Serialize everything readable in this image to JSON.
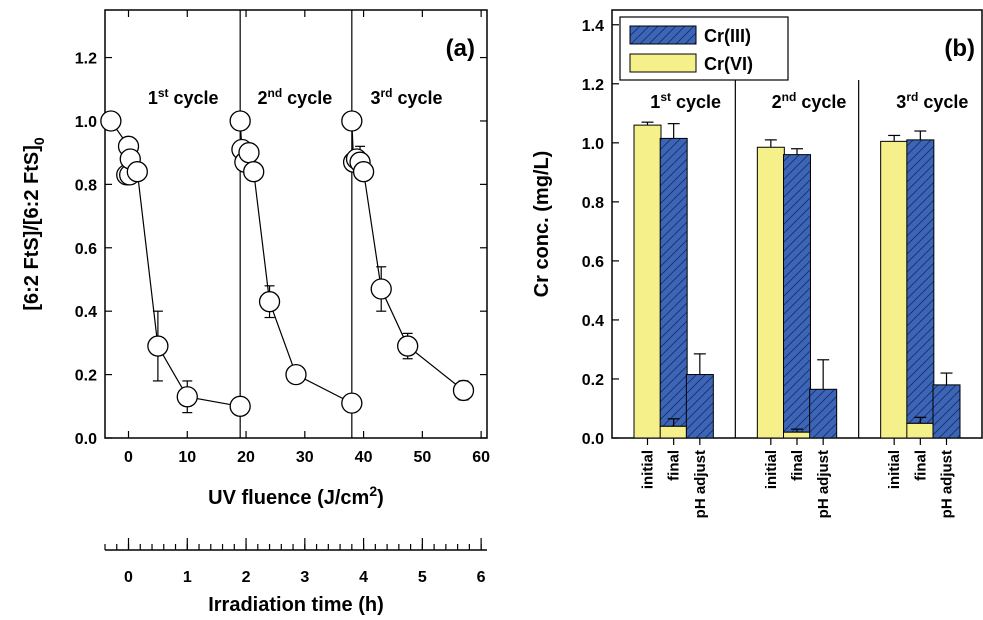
{
  "chart_data": [
    {
      "type": "line",
      "panel_label": "(a)",
      "xlabel": "UV fluence (J/cm",
      "xlabel_sup": "2",
      "xlabel_close": ")",
      "ylabel": "[6:2 FtS]/[6:2 FtS]",
      "ylabel_sub": "0",
      "xlim": [
        -4,
        61
      ],
      "ylim": [
        0,
        1.35
      ],
      "x_ticks": [
        0,
        10,
        20,
        30,
        40,
        50,
        60
      ],
      "y_ticks": [
        0.0,
        0.2,
        0.4,
        0.6,
        0.8,
        1.0,
        1.2
      ],
      "x_tick_labels": [
        "0",
        "10",
        "20",
        "30",
        "40",
        "50",
        "60"
      ],
      "y_tick_labels": [
        "0.0",
        "0.2",
        "0.4",
        "0.6",
        "0.8",
        "1.0",
        "1.2"
      ],
      "cycle_dividers_x": [
        19,
        38
      ],
      "cycle_labels": [
        {
          "num": "1",
          "sup": "st",
          "text": " cycle",
          "x": 2.5
        },
        {
          "num": "2",
          "sup": "nd",
          "text": " cycle",
          "x": 21.5
        },
        {
          "num": "3",
          "sup": "rd",
          "text": " cycle",
          "x": 40.5
        }
      ],
      "series": [
        {
          "points": [
            [
              -3,
              1.0,
              0
            ],
            [
              0,
              0.92,
              0
            ],
            [
              -0.3,
              0.83,
              0
            ],
            [
              0.2,
              0.83,
              0
            ],
            [
              0.3,
              0.88,
              0.03
            ],
            [
              1.5,
              0.84,
              0
            ],
            [
              5,
              0.29,
              0.11
            ],
            [
              10,
              0.13,
              0.05
            ],
            [
              19,
              0.1,
              0
            ]
          ]
        },
        {
          "points": [
            [
              19,
              1.0,
              0
            ],
            [
              19.3,
              0.91,
              0
            ],
            [
              19.8,
              0.87,
              0
            ],
            [
              20.5,
              0.9,
              0
            ],
            [
              21.3,
              0.84,
              0
            ],
            [
              24,
              0.43,
              0.05
            ],
            [
              28.5,
              0.2,
              0
            ],
            [
              38,
              0.11,
              0
            ]
          ]
        },
        {
          "points": [
            [
              38,
              1.0,
              0
            ],
            [
              38.3,
              0.87,
              0
            ],
            [
              38.8,
              0.88,
              0
            ],
            [
              39.4,
              0.87,
              0.05
            ],
            [
              40,
              0.84,
              0
            ],
            [
              43,
              0.47,
              0.07
            ],
            [
              47.5,
              0.29,
              0.04
            ],
            [
              57,
              0.15,
              0.03
            ]
          ]
        }
      ]
    },
    {
      "type": "axis",
      "xlabel": "Irradiation time (h)",
      "xlim": [
        -0.4,
        6.1
      ],
      "x_ticks": [
        0,
        1,
        2,
        3,
        4,
        5,
        6
      ],
      "x_tick_labels": [
        "0",
        "1",
        "2",
        "3",
        "4",
        "5",
        "6"
      ],
      "minor_step": 0.2
    },
    {
      "type": "bar",
      "stacked": true,
      "panel_label": "(b)",
      "ylabel": "Cr conc. (mg/L)",
      "ylim": [
        0,
        1.45
      ],
      "y_ticks": [
        0.0,
        0.2,
        0.4,
        0.6,
        0.8,
        1.0,
        1.2,
        1.4
      ],
      "y_tick_labels": [
        "0.0",
        "0.2",
        "0.4",
        "0.6",
        "0.8",
        "1.0",
        "1.2",
        "1.4"
      ],
      "categories": [
        "initial",
        "final",
        "pH adjust",
        "initial",
        "final",
        "pH adjust",
        "initial",
        "final",
        "pH adjust"
      ],
      "series": [
        {
          "name": "Cr(VI)",
          "values": [
            1.06,
            0.04,
            0.0,
            0.985,
            0.02,
            0.0,
            1.005,
            0.05,
            0.0
          ],
          "errors": [
            0.01,
            0.025,
            0,
            0.025,
            0.01,
            0,
            0.02,
            0.02,
            0
          ]
        },
        {
          "name": "Cr(III)",
          "values": [
            0.0,
            0.975,
            0.215,
            0.0,
            0.94,
            0.165,
            0.0,
            0.96,
            0.18
          ],
          "errors": [
            0,
            0.05,
            0.07,
            0,
            0.02,
            0.1,
            0,
            0.03,
            0.04
          ]
        }
      ],
      "legend_position": "top-left",
      "cycle_labels": [
        {
          "num": "1",
          "sup": "st",
          "text": " cycle"
        },
        {
          "num": "2",
          "sup": "nd",
          "text": " cycle"
        },
        {
          "num": "3",
          "sup": "rd",
          "text": " cycle"
        }
      ]
    }
  ],
  "colors": {
    "cr6": "#f5f08a",
    "cr3": "#3c65b7",
    "hatch_line": "#1a2f66"
  }
}
